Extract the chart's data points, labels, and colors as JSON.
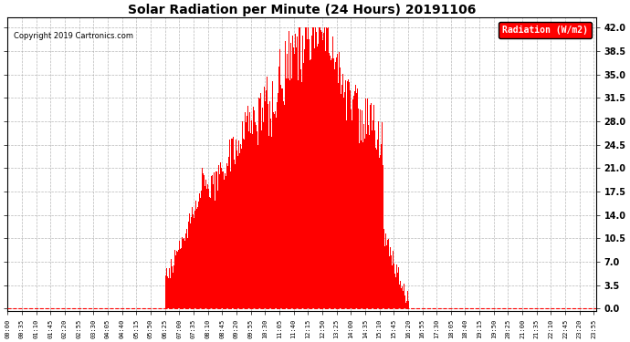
{
  "title": "Solar Radiation per Minute (24 Hours) 20191106",
  "copyright_text": "Copyright 2019 Cartronics.com",
  "legend_label": "Radiation (W/m2)",
  "bar_color": "#ff0000",
  "background_color": "#ffffff",
  "legend_bg_color": "#ff0000",
  "legend_text_color": "#ffffff",
  "grid_color": "#b0b0b0",
  "y_ticks": [
    0.0,
    3.5,
    7.0,
    10.5,
    14.0,
    17.5,
    21.0,
    24.5,
    28.0,
    31.5,
    35.0,
    38.5,
    42.0
  ],
  "ylim_top": 43.5,
  "total_minutes": 1440,
  "title_fontsize": 10,
  "copyright_fontsize": 6,
  "legend_fontsize": 7,
  "ytick_fontsize": 7,
  "xtick_fontsize": 5,
  "x_tick_step": 35,
  "figwidth": 6.9,
  "figheight": 3.75,
  "dpi": 100
}
